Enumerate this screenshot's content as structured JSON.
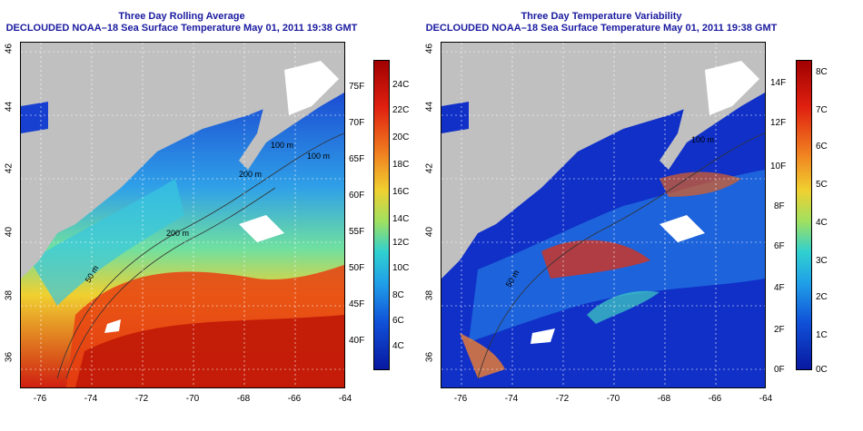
{
  "left_panel": {
    "title_line1": "Three Day Rolling Average",
    "title_line2": "DECLOUDED NOAA–18 Sea Surface Temperature May 01, 2011 19:38 GMT",
    "colorbar_f": [
      "75F",
      "70F",
      "65F",
      "60F",
      "55F",
      "50F",
      "45F",
      "40F"
    ],
    "colorbar_c": [
      "24C",
      "22C",
      "20C",
      "18C",
      "16C",
      "14C",
      "12C",
      "10C",
      "8C",
      "6C",
      "4C"
    ],
    "contour_labels": [
      "100 m",
      "200 m",
      "200 m",
      "50 m",
      "100 m"
    ]
  },
  "right_panel": {
    "title_line1": "Three Day Temperature Variability",
    "title_line2": "DECLOUDED NOAA–18 Sea Surface Temperature May 01, 2011 19:38 GMT",
    "colorbar_f": [
      "14F",
      "12F",
      "10F",
      "8F",
      "6F",
      "4F",
      "2F",
      "0F"
    ],
    "colorbar_c": [
      "8C",
      "7C",
      "6C",
      "5C",
      "4C",
      "3C",
      "2C",
      "1C",
      "0C"
    ],
    "contour_labels": [
      "100 m",
      "50 m"
    ]
  },
  "axes": {
    "lat_ticks": [
      "46",
      "44",
      "42",
      "40",
      "38",
      "36"
    ],
    "lon_ticks": [
      "-76",
      "-74",
      "-72",
      "-70",
      "-68",
      "-66",
      "-64"
    ]
  },
  "colors": {
    "land": "#c0c0c0",
    "title": "#1a1aa0",
    "cold": "#1020c0",
    "hot": "#b00000"
  }
}
